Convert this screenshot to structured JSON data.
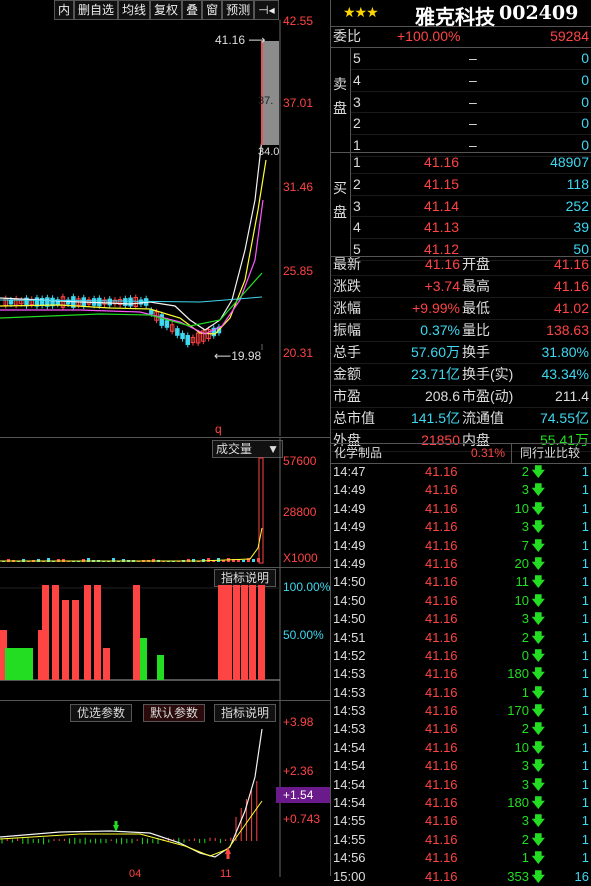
{
  "toolbar": [
    "内",
    "删自选",
    "均线",
    "复权",
    "叠",
    "窗",
    "预测",
    "⊣◂"
  ],
  "stock": {
    "stars": "★★★",
    "name": "雅克科技",
    "code": "002409"
  },
  "main_chart": {
    "price_labels": [
      "42.55",
      "37.01",
      "31.46",
      "25.85",
      "20.31"
    ],
    "high_marker": "41.16",
    "low_marker": "19.98",
    "side_markers": [
      "37.",
      "34.0"
    ],
    "letter_marker": "q"
  },
  "volume": {
    "dropdown": "成交量",
    "labels": [
      "57600",
      "28800",
      "X1000"
    ]
  },
  "indicator1": {
    "button": "指标说明",
    "labels": [
      "100.00%",
      "50.00%"
    ]
  },
  "indicator2": {
    "buttons": [
      "优选参数",
      "默认参数",
      "指标说明"
    ],
    "labels": [
      "+3.98",
      "+2.36",
      "+1.54",
      "+0.743"
    ],
    "date_labels": [
      "04",
      "11"
    ]
  },
  "quote": {
    "weibi": {
      "label": "委比",
      "value": "+100.00%",
      "diff": "59284"
    },
    "sell_label": "卖\n盘",
    "sell": [
      {
        "lv": "5",
        "price": "–",
        "vol": "0"
      },
      {
        "lv": "4",
        "price": "–",
        "vol": "0"
      },
      {
        "lv": "3",
        "price": "–",
        "vol": "0"
      },
      {
        "lv": "2",
        "price": "–",
        "vol": "0"
      },
      {
        "lv": "1",
        "price": "–",
        "vol": "0"
      }
    ],
    "buy_label": "买\n盘",
    "buy": [
      {
        "lv": "1",
        "price": "41.16",
        "vol": "48907"
      },
      {
        "lv": "2",
        "price": "41.15",
        "vol": "118"
      },
      {
        "lv": "3",
        "price": "41.14",
        "vol": "252"
      },
      {
        "lv": "4",
        "price": "41.13",
        "vol": "39"
      },
      {
        "lv": "5",
        "price": "41.12",
        "vol": "50"
      }
    ],
    "stats": [
      {
        "l1": "最新",
        "v1": "41.16",
        "c1": "red",
        "l2": "开盘",
        "v2": "41.16",
        "c2": "red"
      },
      {
        "l1": "涨跌",
        "v1": "+3.74",
        "c1": "red",
        "l2": "最高",
        "v2": "41.16",
        "c2": "red"
      },
      {
        "l1": "涨幅",
        "v1": "+9.99%",
        "c1": "red",
        "l2": "最低",
        "v2": "41.02",
        "c2": "red"
      },
      {
        "l1": "振幅",
        "v1": "0.37%",
        "c1": "cyan",
        "l2": "量比",
        "v2": "138.63",
        "c2": "red"
      },
      {
        "l1": "总手",
        "v1": "57.60万",
        "c1": "cyan",
        "l2": "换手",
        "v2": "31.80%",
        "c2": "cyan"
      },
      {
        "l1": "金额",
        "v1": "23.71亿",
        "c1": "cyan",
        "l2": "换手(实)",
        "v2": "43.34%",
        "c2": "cyan"
      },
      {
        "l1": "市盈",
        "v1": "208.6",
        "c1": "white",
        "l2": "市盈(动)",
        "v2": "211.4",
        "c2": "white"
      },
      {
        "l1": "总市值",
        "v1": "141.5亿",
        "c1": "cyan",
        "l2": "流通值",
        "v2": "74.55亿",
        "c2": "cyan"
      },
      {
        "l1": "外盘",
        "v1": "21850",
        "c1": "red",
        "l2": "内盘",
        "v2": "55.41万",
        "c2": "green"
      }
    ],
    "sector": {
      "name": "化学制品",
      "pct": "0.31%",
      "button": "同行业比较"
    }
  },
  "trades": [
    {
      "t": "14:47",
      "p": "41.16",
      "v": "2",
      "n": "1"
    },
    {
      "t": "14:49",
      "p": "41.16",
      "v": "3",
      "n": "1"
    },
    {
      "t": "14:49",
      "p": "41.16",
      "v": "10",
      "n": "1"
    },
    {
      "t": "14:49",
      "p": "41.16",
      "v": "3",
      "n": "1"
    },
    {
      "t": "14:49",
      "p": "41.16",
      "v": "7",
      "n": "1"
    },
    {
      "t": "14:49",
      "p": "41.16",
      "v": "20",
      "n": "1"
    },
    {
      "t": "14:50",
      "p": "41.16",
      "v": "11",
      "n": "1"
    },
    {
      "t": "14:50",
      "p": "41.16",
      "v": "10",
      "n": "1"
    },
    {
      "t": "14:50",
      "p": "41.16",
      "v": "3",
      "n": "1"
    },
    {
      "t": "14:51",
      "p": "41.16",
      "v": "2",
      "n": "1"
    },
    {
      "t": "14:52",
      "p": "41.16",
      "v": "0",
      "n": "1"
    },
    {
      "t": "14:53",
      "p": "41.16",
      "v": "180",
      "n": "1"
    },
    {
      "t": "14:53",
      "p": "41.16",
      "v": "1",
      "n": "1"
    },
    {
      "t": "14:53",
      "p": "41.16",
      "v": "170",
      "n": "1"
    },
    {
      "t": "14:53",
      "p": "41.16",
      "v": "2",
      "n": "1"
    },
    {
      "t": "14:54",
      "p": "41.16",
      "v": "10",
      "n": "1"
    },
    {
      "t": "14:54",
      "p": "41.16",
      "v": "3",
      "n": "1"
    },
    {
      "t": "14:54",
      "p": "41.16",
      "v": "3",
      "n": "1"
    },
    {
      "t": "14:54",
      "p": "41.16",
      "v": "180",
      "n": "1"
    },
    {
      "t": "14:55",
      "p": "41.16",
      "v": "3",
      "n": "1"
    },
    {
      "t": "14:55",
      "p": "41.16",
      "v": "2",
      "n": "1"
    },
    {
      "t": "14:56",
      "p": "41.16",
      "v": "1",
      "n": "1"
    },
    {
      "t": "15:00",
      "p": "41.16",
      "v": "353",
      "n": "16"
    }
  ],
  "colors": {
    "up": "#ff4444",
    "down": "#22dd22",
    "accent": "#3fd8f0",
    "highlight": "#6a1a8a"
  }
}
